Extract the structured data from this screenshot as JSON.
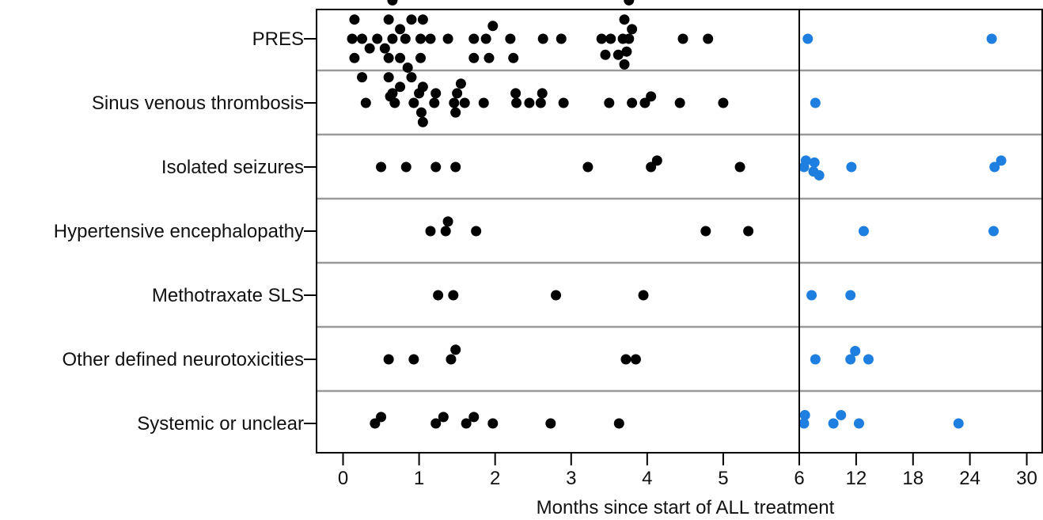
{
  "chart_data": {
    "type": "scatter",
    "xlabel": "Months since start of ALL treatment",
    "ylabel": "",
    "grid": true,
    "legend": "none",
    "colors": {
      "early": "#000000",
      "late": "#1f7fe0",
      "separator": "#9a9a9a",
      "axis": "#000000"
    },
    "x_axis": {
      "segments": [
        {
          "name": "early",
          "range": [
            -0.35,
            6
          ],
          "ticks": [
            0,
            1,
            2,
            3,
            4,
            5,
            6
          ],
          "tick_labels": [
            "0",
            "1",
            "2",
            "3",
            "4",
            "5",
            "6"
          ]
        },
        {
          "name": "late",
          "range": [
            6,
            31
          ],
          "ticks": [
            12,
            18,
            24,
            30
          ],
          "tick_labels": [
            "12",
            "18",
            "24",
            "30"
          ]
        }
      ]
    },
    "categories": [
      "PRES",
      "Sinus venous thrombosis",
      "Isolated seizures",
      "Hypertensive encephalopathy",
      "Methotraxate SLS",
      "Other defined neurotoxicities",
      "Systemic or unclear"
    ],
    "series": [
      {
        "segment": "early",
        "points": [
          [
            0.12,
            0
          ],
          [
            0.15,
            0.3
          ],
          [
            0.15,
            -0.3
          ],
          [
            0.25,
            0
          ],
          [
            0.25,
            0.6
          ],
          [
            0.35,
            0.15
          ],
          [
            0.45,
            0
          ],
          [
            0.55,
            0.15
          ],
          [
            0.6,
            0.6
          ],
          [
            0.6,
            0.3
          ],
          [
            0.6,
            -0.3
          ],
          [
            0.65,
            0
          ],
          [
            0.65,
            -0.6
          ],
          [
            0.62,
            0.9
          ],
          [
            0.75,
            0.3
          ],
          [
            0.75,
            -0.15
          ],
          [
            0.75,
            0.75
          ],
          [
            0.82,
            0
          ],
          [
            0.82,
            -0.75
          ],
          [
            0.85,
            0.45
          ],
          [
            0.9,
            0.6
          ],
          [
            0.9,
            -0.3
          ],
          [
            1.02,
            0
          ],
          [
            1.02,
            0.3
          ],
          [
            1.05,
            0.75
          ],
          [
            1.05,
            -0.3
          ],
          [
            1.15,
            0
          ],
          [
            1.38,
            0
          ],
          [
            1.72,
            0.3
          ],
          [
            1.72,
            0
          ],
          [
            1.88,
            0
          ],
          [
            1.92,
            0.3
          ],
          [
            1.97,
            -0.2
          ],
          [
            2.2,
            0
          ],
          [
            2.24,
            0.3
          ],
          [
            2.63,
            0
          ],
          [
            2.87,
            0
          ],
          [
            3.4,
            0
          ],
          [
            3.45,
            0.25
          ],
          [
            3.52,
            0
          ],
          [
            3.62,
            0.25
          ],
          [
            3.68,
            0
          ],
          [
            3.7,
            0.4
          ],
          [
            3.73,
            0.2
          ],
          [
            3.76,
            0
          ],
          [
            3.8,
            -0.15
          ],
          [
            3.7,
            -0.3
          ],
          [
            3.76,
            -0.6
          ],
          [
            4.47,
            0
          ],
          [
            4.8,
            0
          ]
        ]
      },
      {
        "segment": "early",
        "points": [
          [
            0.3,
            1
          ],
          [
            0.65,
            0.85
          ],
          [
            0.68,
            1
          ],
          [
            0.93,
            1
          ],
          [
            1.0,
            0.85
          ],
          [
            1.03,
            1.15
          ],
          [
            1.05,
            1.3
          ],
          [
            1.2,
            1
          ],
          [
            1.22,
            0.85
          ],
          [
            1.46,
            1
          ],
          [
            1.48,
            1.15
          ],
          [
            1.5,
            0.85
          ],
          [
            1.55,
            0.7
          ],
          [
            1.6,
            1
          ],
          [
            1.85,
            1
          ],
          [
            2.27,
            0.85
          ],
          [
            2.28,
            1
          ],
          [
            2.45,
            1
          ],
          [
            2.6,
            1
          ],
          [
            2.62,
            0.85
          ],
          [
            2.9,
            1
          ],
          [
            3.5,
            1
          ],
          [
            3.8,
            1
          ],
          [
            3.97,
            1
          ],
          [
            4.05,
            0.9
          ],
          [
            4.43,
            1
          ],
          [
            5.0,
            1
          ]
        ]
      },
      {
        "segment": "early",
        "points": [
          [
            0.5,
            2
          ],
          [
            0.83,
            2
          ],
          [
            1.22,
            2
          ],
          [
            1.48,
            2
          ],
          [
            3.22,
            2
          ],
          [
            4.05,
            2
          ],
          [
            4.13,
            1.9
          ],
          [
            5.22,
            2
          ]
        ]
      },
      {
        "segment": "early",
        "points": [
          [
            1.15,
            3
          ],
          [
            1.35,
            3
          ],
          [
            1.38,
            2.85
          ],
          [
            1.75,
            3
          ],
          [
            4.77,
            3
          ],
          [
            5.33,
            3
          ]
        ]
      },
      {
        "segment": "early",
        "points": [
          [
            1.25,
            4
          ],
          [
            1.45,
            4
          ],
          [
            2.8,
            4
          ],
          [
            3.95,
            4
          ]
        ]
      },
      {
        "segment": "early",
        "points": [
          [
            0.6,
            5
          ],
          [
            0.93,
            5
          ],
          [
            1.42,
            5
          ],
          [
            1.48,
            4.85
          ],
          [
            3.72,
            5
          ],
          [
            3.85,
            5
          ]
        ]
      },
      {
        "segment": "early",
        "points": [
          [
            0.42,
            6
          ],
          [
            0.5,
            5.9
          ],
          [
            1.22,
            6
          ],
          [
            1.32,
            5.9
          ],
          [
            1.62,
            6
          ],
          [
            1.72,
            5.9
          ],
          [
            1.97,
            6
          ],
          [
            2.73,
            6
          ],
          [
            3.63,
            6
          ]
        ]
      },
      {
        "segment": "late",
        "points": [
          [
            6.9,
            0
          ],
          [
            26.3,
            0
          ],
          [
            7.7,
            1
          ],
          [
            6.7,
            1.9
          ],
          [
            6.5,
            2
          ],
          [
            7.5,
            2.07
          ],
          [
            7.6,
            1.93
          ],
          [
            8.1,
            2.13
          ],
          [
            11.5,
            2
          ],
          [
            26.6,
            2
          ],
          [
            27.3,
            1.9
          ],
          [
            26.5,
            3
          ],
          [
            12.8,
            3
          ],
          [
            7.3,
            4
          ],
          [
            11.4,
            4
          ],
          [
            7.7,
            5
          ],
          [
            11.9,
            4.87
          ],
          [
            11.4,
            5
          ],
          [
            13.3,
            5
          ],
          [
            6.6,
            5.87
          ],
          [
            6.5,
            6
          ],
          [
            9.6,
            6
          ],
          [
            10.4,
            5.87
          ],
          [
            12.3,
            6
          ],
          [
            22.8,
            6
          ]
        ]
      }
    ]
  }
}
